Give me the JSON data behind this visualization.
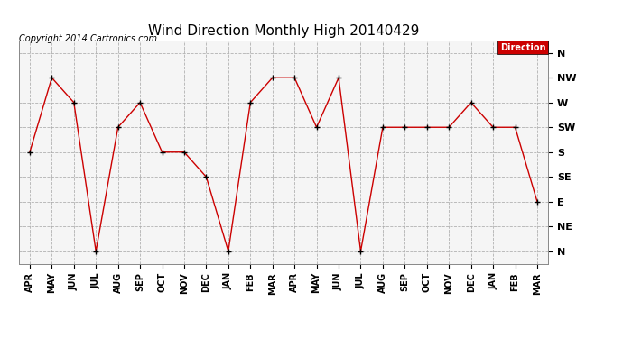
{
  "title": "Wind Direction Monthly High 20140429",
  "copyright": "Copyright 2014 Cartronics.com",
  "legend_label": "Direction",
  "x_labels": [
    "APR",
    "MAY",
    "JUN",
    "JUL",
    "AUG",
    "SEP",
    "OCT",
    "NOV",
    "DEC",
    "JAN",
    "FEB",
    "MAR",
    "APR",
    "MAY",
    "JUN",
    "JUL",
    "AUG",
    "SEP",
    "OCT",
    "NOV",
    "DEC",
    "JAN",
    "FEB",
    "MAR"
  ],
  "y_tick_positions": [
    0,
    1,
    2,
    3,
    4,
    5,
    6,
    7,
    8
  ],
  "y_tick_labels": [
    "N",
    "NE",
    "E",
    "SE",
    "S",
    "SW",
    "W",
    "NW",
    "N"
  ],
  "data_values": [
    4,
    7,
    6,
    0,
    5,
    6,
    4,
    4,
    3,
    0,
    6,
    7,
    7,
    5,
    7,
    0,
    5,
    5,
    5,
    5,
    6,
    5,
    5,
    2
  ],
  "line_color": "#cc0000",
  "marker_color": "#000000",
  "background_color": "#ffffff",
  "plot_bg_color": "#f5f5f5",
  "grid_color": "#aaaaaa",
  "legend_bg": "#cc0000",
  "legend_text_color": "#ffffff",
  "title_fontsize": 11,
  "copyright_fontsize": 7,
  "tick_fontsize": 7,
  "ylabel_fontsize": 8
}
